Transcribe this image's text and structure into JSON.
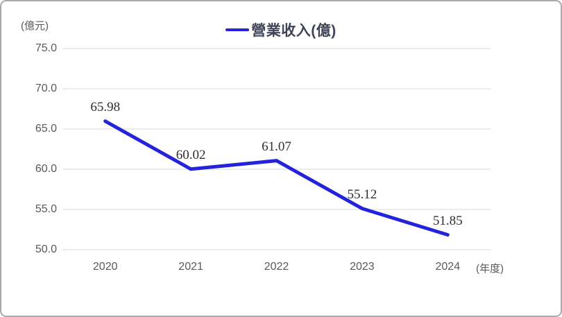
{
  "chart_data": {
    "type": "line",
    "legend": "營業收入(億)",
    "legend_position": "top",
    "y_unit_label": "(億元)",
    "x_unit_label": "(年度)",
    "categories": [
      "2020",
      "2021",
      "2022",
      "2023",
      "2024"
    ],
    "series": [
      {
        "name": "營業收入(億)",
        "values": [
          65.98,
          60.02,
          61.07,
          55.12,
          51.85
        ]
      }
    ],
    "data_labels": [
      "65.98",
      "60.02",
      "61.07",
      "55.12",
      "51.85"
    ],
    "y_ticks": [
      "75.0",
      "70.0",
      "65.0",
      "60.0",
      "55.0",
      "50.0"
    ],
    "y_tick_values": [
      75,
      70,
      65,
      60,
      55,
      50
    ],
    "ylim": [
      50,
      75
    ],
    "grid": true,
    "line_color": "#2323db",
    "gridline_color": "#d9d9d9",
    "axis_text_color": "#595959",
    "legend_text_color": "#3f4458",
    "data_label_color": "#2e2e2e",
    "frame_border_color": "#a9a9a9"
  }
}
